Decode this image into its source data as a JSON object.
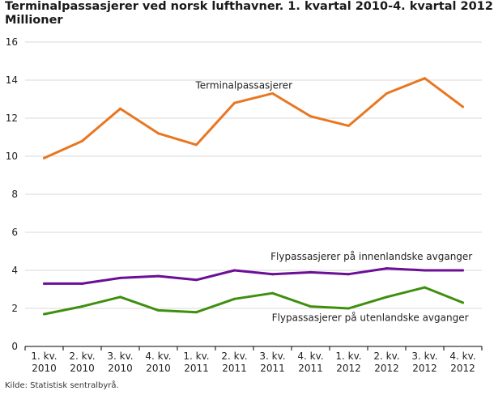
{
  "title_line1": "Terminalpassasjerer ved norsk lufthavner. 1. kvartal 2010-4. kvartal 2012.",
  "title_line2": "Millioner",
  "source": "Kilde: Statistisk sentralbyrå.",
  "chart_data": {
    "type": "line",
    "title": "Terminalpassasjerer ved norsk lufthavner. 1. kvartal 2010-4. kvartal 2012. Millioner",
    "xlabel": "",
    "ylabel": "",
    "ylim": [
      0,
      16
    ],
    "yticks": [
      0,
      2,
      4,
      6,
      8,
      10,
      12,
      14,
      16
    ],
    "grid": true,
    "legend": "none",
    "categories": [
      [
        "1. kv.",
        "2010"
      ],
      [
        "2. kv.",
        "2010"
      ],
      [
        "3. kv.",
        "2010"
      ],
      [
        "4. kv.",
        "2010"
      ],
      [
        "1. kv.",
        "2011"
      ],
      [
        "2. kv.",
        "2011"
      ],
      [
        "3. kv.",
        "2011"
      ],
      [
        "4. kv.",
        "2011"
      ],
      [
        "1. kv.",
        "2012"
      ],
      [
        "2. kv.",
        "2012"
      ],
      [
        "3. kv.",
        "2012"
      ],
      [
        "4. kv.",
        "2012"
      ]
    ],
    "series": [
      {
        "name": "Terminalpassasjerer",
        "color": "#e87722",
        "values": [
          9.9,
          10.8,
          12.5,
          11.2,
          10.6,
          12.8,
          13.3,
          12.1,
          11.6,
          13.3,
          14.1,
          12.6
        ]
      },
      {
        "name": "Flypassasjerer på innenlandske avganger",
        "color": "#6b0f96",
        "values": [
          3.3,
          3.3,
          3.6,
          3.7,
          3.5,
          4.0,
          3.8,
          3.9,
          3.8,
          4.1,
          4.0,
          4.0
        ]
      },
      {
        "name": "Flypassasjerer på utenlandske avganger",
        "color": "#3f8f0f",
        "values": [
          1.7,
          2.1,
          2.6,
          1.9,
          1.8,
          2.5,
          2.8,
          2.1,
          2.0,
          2.6,
          3.1,
          2.3
        ]
      }
    ]
  }
}
